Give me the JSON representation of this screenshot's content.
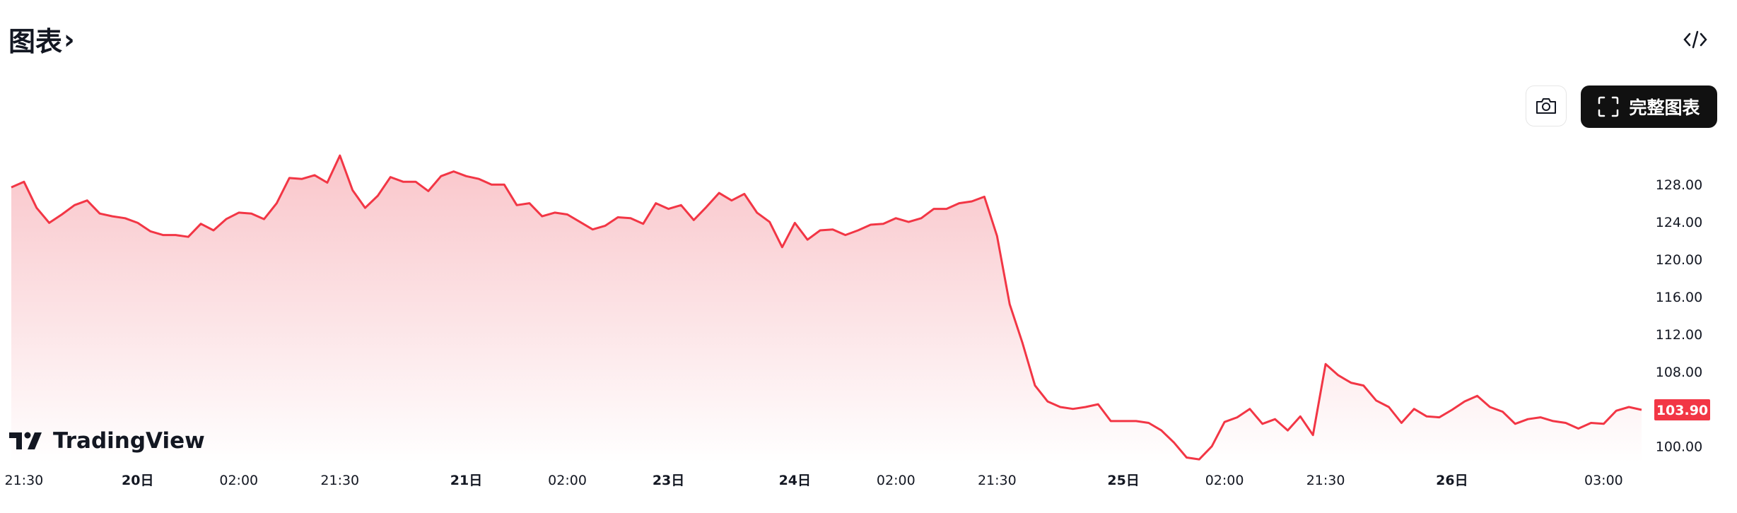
{
  "header": {
    "title": "图表",
    "title_chevron": "›",
    "embed_icon": "code-icon"
  },
  "toolbar": {
    "snapshot_icon": "camera-icon",
    "full_chart_label": "完整图表",
    "full_chart_icon": "fullscreen-icon"
  },
  "brand": {
    "name": "TradingView"
  },
  "colors": {
    "line": "#f23645",
    "fill_top": "#f9c5ca",
    "fill_bottom": "#ffffff",
    "price_badge": "#f23645"
  },
  "chart_data": {
    "type": "area",
    "ylim": [
      98,
      132
    ],
    "y_ticks": [
      {
        "value": 128,
        "label": "128.00"
      },
      {
        "value": 124,
        "label": "124.00"
      },
      {
        "value": 120,
        "label": "120.00"
      },
      {
        "value": 116,
        "label": "116.00"
      },
      {
        "value": 112,
        "label": "112.00"
      },
      {
        "value": 108,
        "label": "108.00"
      },
      {
        "value": 100,
        "label": "100.00"
      }
    ],
    "last_price": {
      "value": 103.9,
      "label": "103.90"
    },
    "x_ticks": [
      {
        "index": 1,
        "label": "21:30"
      },
      {
        "index": 10,
        "label": "20日"
      },
      {
        "index": 18,
        "label": "02:00"
      },
      {
        "index": 26,
        "label": "21:30"
      },
      {
        "index": 36,
        "label": "21日"
      },
      {
        "index": 44,
        "label": "02:00"
      },
      {
        "index": 52,
        "label": "23日"
      },
      {
        "index": 62,
        "label": "24日"
      },
      {
        "index": 70,
        "label": "02:00"
      },
      {
        "index": 78,
        "label": "21:30"
      },
      {
        "index": 88,
        "label": "25日"
      },
      {
        "index": 96,
        "label": "02:00"
      },
      {
        "index": 104,
        "label": "21:30"
      },
      {
        "index": 114,
        "label": "26日"
      },
      {
        "index": 126,
        "label": "03:00"
      }
    ],
    "values": [
      127.7,
      128.3,
      125.5,
      123.9,
      124.8,
      125.8,
      126.3,
      124.9,
      124.6,
      124.4,
      123.9,
      123.0,
      122.6,
      122.6,
      122.4,
      123.8,
      123.1,
      124.3,
      125.0,
      124.9,
      124.3,
      126.0,
      128.7,
      128.6,
      129.0,
      128.2,
      131.1,
      127.4,
      125.5,
      126.8,
      128.8,
      128.3,
      128.3,
      127.3,
      128.9,
      129.4,
      128.9,
      128.6,
      128.0,
      128.0,
      125.8,
      126.0,
      124.6,
      125.0,
      124.8,
      124.0,
      123.2,
      123.6,
      124.5,
      124.4,
      123.8,
      126.0,
      125.4,
      125.8,
      124.2,
      125.6,
      127.1,
      126.3,
      127.0,
      125.0,
      124.0,
      121.3,
      123.9,
      122.1,
      123.1,
      123.2,
      122.6,
      123.1,
      123.7,
      123.8,
      124.4,
      124.0,
      124.4,
      125.4,
      125.4,
      126.0,
      126.2,
      126.7,
      122.5,
      115.2,
      111.1,
      106.5,
      104.8,
      104.2,
      104.0,
      104.2,
      104.5,
      102.7,
      102.7,
      102.7,
      102.5,
      101.7,
      100.4,
      98.8,
      98.6,
      100.0,
      102.6,
      103.1,
      104.0,
      102.4,
      102.9,
      101.7,
      103.2,
      101.2,
      108.8,
      107.6,
      106.8,
      106.5,
      104.9,
      104.2,
      102.5,
      104.0,
      103.2,
      103.1,
      103.9,
      104.8,
      105.4,
      104.2,
      103.7,
      102.4,
      102.9,
      103.1,
      102.7,
      102.5,
      101.9,
      102.5,
      102.4,
      103.8,
      104.2,
      103.9
    ]
  }
}
